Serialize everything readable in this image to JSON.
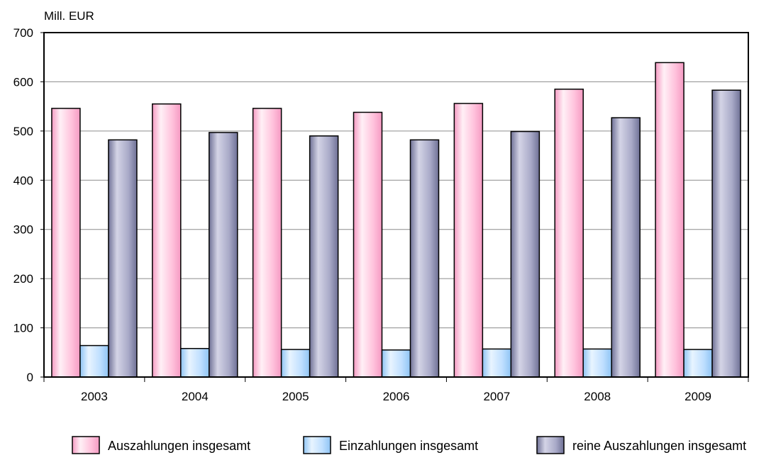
{
  "chart_data": {
    "type": "bar",
    "unit_label": "Mill. EUR",
    "categories": [
      "2003",
      "2004",
      "2005",
      "2006",
      "2007",
      "2008",
      "2009"
    ],
    "series": [
      {
        "name": "Auszahlungen insgesamt",
        "color_light": "#fff0f6",
        "color_mid": "#ffc2dc",
        "color_dark": "#f59ac2",
        "values": [
          546,
          555,
          546,
          538,
          556,
          585,
          639
        ]
      },
      {
        "name": "Einzahlungen insgesamt",
        "color_light": "#e8f4ff",
        "color_mid": "#bfdfff",
        "color_dark": "#8fc4f4",
        "values": [
          64,
          58,
          56,
          55,
          57,
          57,
          56
        ]
      },
      {
        "name": "reine Auszahlungen insgesamt",
        "color_light": "#d4d4e6",
        "color_mid": "#a9aac8",
        "color_dark": "#6f7196",
        "values": [
          482,
          497,
          490,
          482,
          499,
          527,
          583
        ]
      }
    ],
    "ylim": [
      0,
      700
    ],
    "yticks": [
      0,
      100,
      200,
      300,
      400,
      500,
      600,
      700
    ],
    "grid": true,
    "legend_position": "bottom"
  }
}
